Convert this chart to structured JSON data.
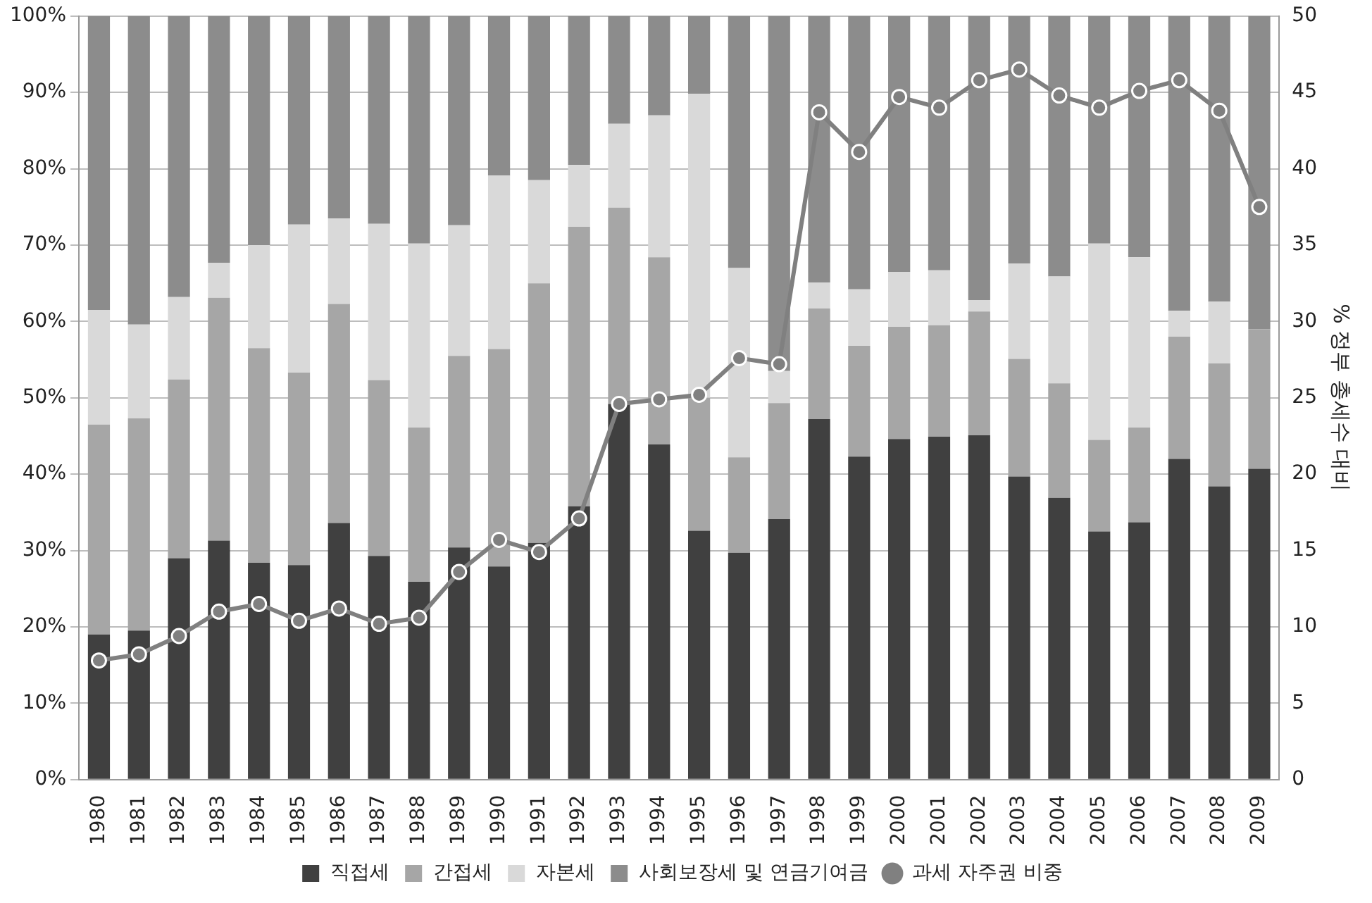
{
  "chart_data": {
    "type": "bar",
    "stacked": true,
    "categories": [
      "1980",
      "1981",
      "1982",
      "1983",
      "1984",
      "1985",
      "1986",
      "1987",
      "1988",
      "1989",
      "1990",
      "1991",
      "1992",
      "1993",
      "1994",
      "1995",
      "1996",
      "1997",
      "1998",
      "1999",
      "2000",
      "2001",
      "2002",
      "2003",
      "2004",
      "2005",
      "2006",
      "2007",
      "2008",
      "2009"
    ],
    "series": [
      {
        "name": "직접세",
        "color": "#404040",
        "values": [
          19,
          19.5,
          29,
          31.3,
          28.4,
          28.1,
          33.6,
          29.3,
          25.9,
          30.4,
          27.9,
          31,
          35.8,
          49.2,
          43.9,
          32.6,
          29.7,
          34.1,
          47.2,
          42.3,
          44.6,
          44.9,
          45.1,
          39.7,
          36.9,
          32.5,
          33.7,
          42,
          38.4,
          40.7
        ]
      },
      {
        "name": "간접세",
        "color": "#a6a6a6",
        "values": [
          27.5,
          27.8,
          23.4,
          31.8,
          28.1,
          25.2,
          28.7,
          23,
          20.2,
          25.1,
          28.5,
          34,
          36.6,
          25.7,
          24.5,
          17.4,
          12.5,
          15.2,
          14.5,
          14.5,
          14.7,
          14.6,
          16.2,
          15.4,
          15,
          12,
          12.4,
          16,
          16.1,
          18.3
        ]
      },
      {
        "name": "자본세",
        "color": "#d9d9d9",
        "values": [
          15,
          12.3,
          10.8,
          4.6,
          13.5,
          19.4,
          11.2,
          20.5,
          24.1,
          17.1,
          22.7,
          13.5,
          8.1,
          11,
          18.6,
          39.8,
          24.8,
          4.2,
          3.4,
          7.4,
          7.2,
          7.2,
          1.5,
          12.5,
          14,
          25.7,
          22.3,
          3.4,
          8.1,
          0
        ]
      },
      {
        "name": "사회보장세 및 연금기여금",
        "color": "#8c8c8c",
        "values": [
          38.5,
          40.4,
          36.8,
          32.3,
          30,
          27.3,
          26.5,
          27.2,
          29.8,
          27.4,
          20.9,
          21.5,
          19.5,
          14.1,
          13,
          10.2,
          33,
          46.5,
          34.9,
          35.8,
          33.5,
          33.3,
          37.2,
          32.4,
          34.1,
          29.8,
          31.6,
          38.6,
          37.4,
          41
        ]
      },
      {
        "name": "과세 자주권 비중",
        "type": "line",
        "axis": "y2",
        "marker": "circle",
        "color": "#808080",
        "values": [
          7.8,
          8.2,
          9.4,
          11,
          11.5,
          10.4,
          11.2,
          10.2,
          10.6,
          13.6,
          15.7,
          14.9,
          17.1,
          24.6,
          24.9,
          25.2,
          27.6,
          27.2,
          43.7,
          41.1,
          44.7,
          44,
          45.8,
          46.5,
          44.8,
          44,
          45.1,
          45.8,
          43.8,
          37.5
        ]
      }
    ],
    "ylim": [
      0,
      100
    ],
    "yticks": [
      {
        "value": 0,
        "label": "0%"
      },
      {
        "value": 10,
        "label": "10%"
      },
      {
        "value": 20,
        "label": "20%"
      },
      {
        "value": 30,
        "label": "30%"
      },
      {
        "value": 40,
        "label": "40%"
      },
      {
        "value": 50,
        "label": "50%"
      },
      {
        "value": 60,
        "label": "60%"
      },
      {
        "value": 70,
        "label": "70%"
      },
      {
        "value": 80,
        "label": "80%"
      },
      {
        "value": 90,
        "label": "90%"
      },
      {
        "value": 100,
        "label": "100%"
      }
    ],
    "y2lim": [
      0,
      50
    ],
    "y2ticks": [
      0,
      5,
      10,
      15,
      20,
      25,
      30,
      35,
      40,
      45,
      50
    ],
    "y2label": "% 정부 총세수 대비",
    "grid": "y",
    "legend": "bottom"
  }
}
